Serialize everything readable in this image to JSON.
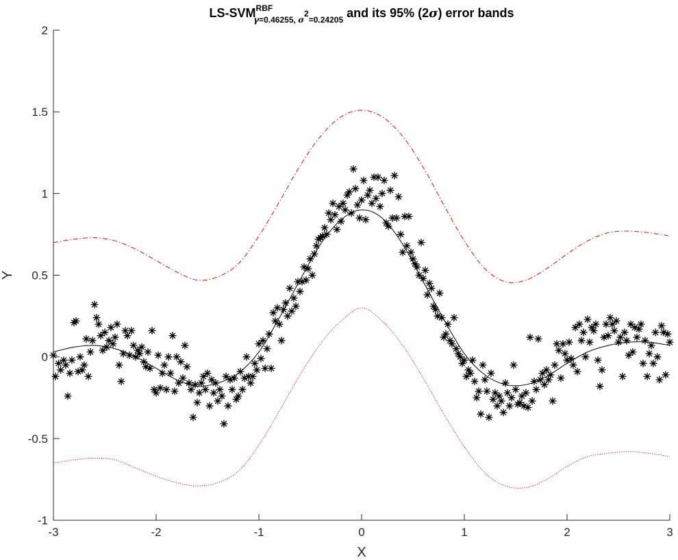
{
  "title": {
    "base": "LS-SVM",
    "superscript": "RBF",
    "sub_gamma_symbol": "γ",
    "sub_gamma_value": "=0.46255, ",
    "sub_sigma_symbol": "σ",
    "sub_sigma_exp": "2",
    "sub_sigma_value": "=0.24205",
    "rest_before": " and its 95% (2",
    "rest_sigma": "σ",
    "rest_after": ") error bands"
  },
  "chart_data": {
    "type": "scatter",
    "xlabel": "X",
    "ylabel": "Y",
    "xlim": [
      -3,
      3
    ],
    "ylim": [
      -1,
      2
    ],
    "xticks": [
      -3,
      -2,
      -1,
      0,
      1,
      2,
      3
    ],
    "yticks": [
      -1,
      -0.5,
      0,
      0.5,
      1,
      1.5,
      2
    ],
    "xtick_labels": [
      "-3",
      "-2",
      "-1",
      "0",
      "1",
      "2",
      "3"
    ],
    "ytick_labels": [
      "-1",
      "-0.5",
      "0",
      "0.5",
      "1",
      "1.5",
      "2"
    ],
    "grid": false,
    "curves": {
      "x": [
        -3.0,
        -2.8,
        -2.6,
        -2.4,
        -2.2,
        -2.0,
        -1.8,
        -1.6,
        -1.4,
        -1.2,
        -1.0,
        -0.8,
        -0.6,
        -0.4,
        -0.2,
        0.0,
        0.2,
        0.4,
        0.6,
        0.8,
        1.0,
        1.2,
        1.4,
        1.6,
        1.8,
        2.0,
        2.2,
        2.4,
        2.6,
        2.8,
        3.0
      ],
      "fit": [
        0.03,
        0.06,
        0.07,
        0.05,
        0.0,
        -0.07,
        -0.14,
        -0.18,
        -0.16,
        -0.1,
        0.03,
        0.24,
        0.47,
        0.69,
        0.84,
        0.9,
        0.85,
        0.69,
        0.46,
        0.23,
        0.02,
        -0.11,
        -0.17,
        -0.17,
        -0.12,
        -0.04,
        0.03,
        0.07,
        0.09,
        0.09,
        0.07
      ],
      "upper_band": [
        0.7,
        0.72,
        0.73,
        0.71,
        0.66,
        0.59,
        0.52,
        0.47,
        0.49,
        0.57,
        0.74,
        0.95,
        1.17,
        1.35,
        1.47,
        1.51,
        1.47,
        1.35,
        1.16,
        0.93,
        0.71,
        0.54,
        0.46,
        0.47,
        0.54,
        0.63,
        0.71,
        0.76,
        0.77,
        0.76,
        0.74
      ],
      "lower_band": [
        -0.65,
        -0.63,
        -0.62,
        -0.63,
        -0.68,
        -0.73,
        -0.77,
        -0.79,
        -0.77,
        -0.7,
        -0.54,
        -0.33,
        -0.11,
        0.08,
        0.22,
        0.3,
        0.22,
        0.07,
        -0.13,
        -0.35,
        -0.55,
        -0.71,
        -0.79,
        -0.8,
        -0.75,
        -0.67,
        -0.61,
        -0.59,
        -0.58,
        -0.59,
        -0.61
      ]
    },
    "points": [
      {
        "x": -3.0,
        "y": 0.01
      },
      {
        "x": -2.98,
        "y": -0.12
      },
      {
        "x": -2.95,
        "y": -0.04
      },
      {
        "x": -2.93,
        "y": -0.08
      },
      {
        "x": -2.9,
        "y": -0.02
      },
      {
        "x": -2.88,
        "y": -0.05
      },
      {
        "x": -2.86,
        "y": -0.24
      },
      {
        "x": -2.84,
        "y": -0.1
      },
      {
        "x": -2.82,
        "y": -0.02
      },
      {
        "x": -2.8,
        "y": 0.21
      },
      {
        "x": -2.78,
        "y": 0.22
      },
      {
        "x": -2.76,
        "y": -0.09
      },
      {
        "x": -2.74,
        "y": 0.0
      },
      {
        "x": -2.72,
        "y": -0.08
      },
      {
        "x": -2.7,
        "y": -0.05
      },
      {
        "x": -2.68,
        "y": 0.11
      },
      {
        "x": -2.66,
        "y": -0.12
      },
      {
        "x": -2.64,
        "y": 0.03
      },
      {
        "x": -2.62,
        "y": 0.1
      },
      {
        "x": -2.6,
        "y": 0.32
      },
      {
        "x": -2.58,
        "y": 0.24
      },
      {
        "x": -2.56,
        "y": 0.2
      },
      {
        "x": -2.54,
        "y": 0.13
      },
      {
        "x": -2.52,
        "y": 0.04
      },
      {
        "x": -2.5,
        "y": 0.15
      },
      {
        "x": -2.48,
        "y": 0.06
      },
      {
        "x": -2.46,
        "y": 0.1
      },
      {
        "x": -2.44,
        "y": 0.18
      },
      {
        "x": -2.42,
        "y": 0.08
      },
      {
        "x": -2.4,
        "y": 0.12
      },
      {
        "x": -2.38,
        "y": 0.2
      },
      {
        "x": -2.36,
        "y": -0.05
      },
      {
        "x": -2.34,
        "y": -0.15
      },
      {
        "x": -2.32,
        "y": 0.02
      },
      {
        "x": -2.3,
        "y": 0.16
      },
      {
        "x": -2.28,
        "y": 0.13
      },
      {
        "x": -2.26,
        "y": 0.01
      },
      {
        "x": -2.24,
        "y": 0.16
      },
      {
        "x": -2.22,
        "y": 0.07
      },
      {
        "x": -2.2,
        "y": 0.0
      },
      {
        "x": -2.18,
        "y": 0.04
      },
      {
        "x": -2.16,
        "y": 0.02
      },
      {
        "x": -2.14,
        "y": 0.06
      },
      {
        "x": -2.12,
        "y": -0.03
      },
      {
        "x": -2.1,
        "y": -0.06
      },
      {
        "x": -2.08,
        "y": 0.03
      },
      {
        "x": -2.06,
        "y": -0.07
      },
      {
        "x": -2.04,
        "y": 0.16
      },
      {
        "x": -2.02,
        "y": -0.2
      },
      {
        "x": -2.0,
        "y": -0.22
      },
      {
        "x": -1.98,
        "y": 0.01
      },
      {
        "x": -1.96,
        "y": -0.19
      },
      {
        "x": -1.94,
        "y": -0.1
      },
      {
        "x": -1.92,
        "y": -0.05
      },
      {
        "x": -1.9,
        "y": -0.2
      },
      {
        "x": -1.88,
        "y": 0.0
      },
      {
        "x": -1.86,
        "y": -0.1
      },
      {
        "x": -1.84,
        "y": 0.13
      },
      {
        "x": -1.82,
        "y": -0.21
      },
      {
        "x": -1.8,
        "y": 0.0
      },
      {
        "x": -1.78,
        "y": -0.16
      },
      {
        "x": -1.76,
        "y": -0.03
      },
      {
        "x": -1.74,
        "y": -0.13
      },
      {
        "x": -1.72,
        "y": 0.07
      },
      {
        "x": -1.7,
        "y": -0.06
      },
      {
        "x": -1.68,
        "y": -0.16
      },
      {
        "x": -1.66,
        "y": -0.2
      },
      {
        "x": -1.64,
        "y": -0.37
      },
      {
        "x": -1.62,
        "y": -0.17
      },
      {
        "x": -1.6,
        "y": -0.28
      },
      {
        "x": -1.58,
        "y": -0.22
      },
      {
        "x": -1.56,
        "y": -0.16
      },
      {
        "x": -1.54,
        "y": -0.12
      },
      {
        "x": -1.52,
        "y": -0.2
      },
      {
        "x": -1.5,
        "y": -0.1
      },
      {
        "x": -1.48,
        "y": -0.3
      },
      {
        "x": -1.46,
        "y": -0.14
      },
      {
        "x": -1.44,
        "y": -0.22
      },
      {
        "x": -1.42,
        "y": -0.16
      },
      {
        "x": -1.4,
        "y": -0.27
      },
      {
        "x": -1.38,
        "y": -0.2
      },
      {
        "x": -1.36,
        "y": -0.24
      },
      {
        "x": -1.34,
        "y": -0.41
      },
      {
        "x": -1.32,
        "y": -0.12
      },
      {
        "x": -1.3,
        "y": -0.3
      },
      {
        "x": -1.28,
        "y": -0.14
      },
      {
        "x": -1.26,
        "y": -0.2
      },
      {
        "x": -1.24,
        "y": -0.13
      },
      {
        "x": -1.22,
        "y": -0.26
      },
      {
        "x": -1.2,
        "y": -0.24
      },
      {
        "x": -1.18,
        "y": -0.09
      },
      {
        "x": -1.16,
        "y": -0.2
      },
      {
        "x": -1.14,
        "y": -0.13
      },
      {
        "x": -1.12,
        "y": 0.0
      },
      {
        "x": -1.1,
        "y": -0.12
      },
      {
        "x": -1.08,
        "y": -0.16
      },
      {
        "x": -1.06,
        "y": -0.12
      },
      {
        "x": -1.04,
        "y": -0.04
      },
      {
        "x": -1.02,
        "y": -0.08
      },
      {
        "x": -1.0,
        "y": 0.08
      },
      {
        "x": -0.98,
        "y": -0.01
      },
      {
        "x": -0.96,
        "y": 0.1
      },
      {
        "x": -0.94,
        "y": -0.07
      },
      {
        "x": -0.92,
        "y": 0.05
      },
      {
        "x": -0.9,
        "y": 0.14
      },
      {
        "x": -0.88,
        "y": -0.07
      },
      {
        "x": -0.86,
        "y": 0.27
      },
      {
        "x": -0.84,
        "y": 0.22
      },
      {
        "x": -0.82,
        "y": 0.3
      },
      {
        "x": -0.8,
        "y": 0.2
      },
      {
        "x": -0.78,
        "y": 0.1
      },
      {
        "x": -0.76,
        "y": 0.29
      },
      {
        "x": -0.74,
        "y": 0.33
      },
      {
        "x": -0.72,
        "y": 0.25
      },
      {
        "x": -0.7,
        "y": 0.42
      },
      {
        "x": -0.68,
        "y": 0.28
      },
      {
        "x": -0.66,
        "y": 0.36
      },
      {
        "x": -0.64,
        "y": 0.31
      },
      {
        "x": -0.62,
        "y": 0.46
      },
      {
        "x": -0.6,
        "y": 0.4
      },
      {
        "x": -0.58,
        "y": 0.46
      },
      {
        "x": -0.56,
        "y": 0.55
      },
      {
        "x": -0.54,
        "y": 0.47
      },
      {
        "x": -0.52,
        "y": 0.54
      },
      {
        "x": -0.5,
        "y": 0.6
      },
      {
        "x": -0.48,
        "y": 0.5
      },
      {
        "x": -0.46,
        "y": 0.63
      },
      {
        "x": -0.44,
        "y": 0.68
      },
      {
        "x": -0.42,
        "y": 0.72
      },
      {
        "x": -0.4,
        "y": 0.73
      },
      {
        "x": -0.38,
        "y": 0.74
      },
      {
        "x": -0.36,
        "y": 0.79
      },
      {
        "x": -0.34,
        "y": 0.75
      },
      {
        "x": -0.32,
        "y": 0.88
      },
      {
        "x": -0.3,
        "y": 0.84
      },
      {
        "x": -0.28,
        "y": 0.94
      },
      {
        "x": -0.26,
        "y": 0.87
      },
      {
        "x": -0.24,
        "y": 0.78
      },
      {
        "x": -0.22,
        "y": 0.92
      },
      {
        "x": -0.2,
        "y": 0.83
      },
      {
        "x": -0.18,
        "y": 0.94
      },
      {
        "x": -0.16,
        "y": 0.9
      },
      {
        "x": -0.14,
        "y": 0.99
      },
      {
        "x": -0.12,
        "y": 1.01
      },
      {
        "x": -0.1,
        "y": 0.88
      },
      {
        "x": -0.08,
        "y": 1.15
      },
      {
        "x": -0.06,
        "y": 1.03
      },
      {
        "x": -0.04,
        "y": 0.93
      },
      {
        "x": -0.02,
        "y": 0.85
      },
      {
        "x": 0.0,
        "y": 0.96
      },
      {
        "x": 0.02,
        "y": 1.08
      },
      {
        "x": 0.04,
        "y": 0.84
      },
      {
        "x": 0.06,
        "y": 0.99
      },
      {
        "x": 0.08,
        "y": 1.02
      },
      {
        "x": 0.1,
        "y": 0.94
      },
      {
        "x": 0.12,
        "y": 1.1
      },
      {
        "x": 0.14,
        "y": 0.97
      },
      {
        "x": 0.16,
        "y": 1.1
      },
      {
        "x": 0.18,
        "y": 0.92
      },
      {
        "x": 0.2,
        "y": 1.0
      },
      {
        "x": 0.22,
        "y": 1.08
      },
      {
        "x": 0.24,
        "y": 0.82
      },
      {
        "x": 0.26,
        "y": 0.8
      },
      {
        "x": 0.28,
        "y": 1.02
      },
      {
        "x": 0.3,
        "y": 0.85
      },
      {
        "x": 0.32,
        "y": 1.11
      },
      {
        "x": 0.34,
        "y": 0.85
      },
      {
        "x": 0.36,
        "y": 0.98
      },
      {
        "x": 0.38,
        "y": 0.75
      },
      {
        "x": 0.4,
        "y": 0.64
      },
      {
        "x": 0.42,
        "y": 0.86
      },
      {
        "x": 0.44,
        "y": 0.68
      },
      {
        "x": 0.46,
        "y": 0.86
      },
      {
        "x": 0.48,
        "y": 0.64
      },
      {
        "x": 0.5,
        "y": 0.6
      },
      {
        "x": 0.52,
        "y": 0.57
      },
      {
        "x": 0.54,
        "y": 0.55
      },
      {
        "x": 0.56,
        "y": 0.5
      },
      {
        "x": 0.58,
        "y": 0.7
      },
      {
        "x": 0.6,
        "y": 0.48
      },
      {
        "x": 0.62,
        "y": 0.53
      },
      {
        "x": 0.64,
        "y": 0.38
      },
      {
        "x": 0.66,
        "y": 0.45
      },
      {
        "x": 0.68,
        "y": 0.42
      },
      {
        "x": 0.7,
        "y": 0.31
      },
      {
        "x": 0.72,
        "y": 0.29
      },
      {
        "x": 0.74,
        "y": 0.25
      },
      {
        "x": 0.76,
        "y": 0.39
      },
      {
        "x": 0.78,
        "y": 0.24
      },
      {
        "x": 0.8,
        "y": 0.12
      },
      {
        "x": 0.82,
        "y": 0.14
      },
      {
        "x": 0.84,
        "y": 0.2
      },
      {
        "x": 0.86,
        "y": 0.1
      },
      {
        "x": 0.88,
        "y": 0.08
      },
      {
        "x": 0.9,
        "y": 0.24
      },
      {
        "x": 0.92,
        "y": 0.05
      },
      {
        "x": 0.94,
        "y": 0.02
      },
      {
        "x": 0.96,
        "y": 0.0
      },
      {
        "x": 0.98,
        "y": -0.04
      },
      {
        "x": 1.0,
        "y": -0.02
      },
      {
        "x": 1.02,
        "y": -0.12
      },
      {
        "x": 1.04,
        "y": -0.08
      },
      {
        "x": 1.06,
        "y": -0.1
      },
      {
        "x": 1.08,
        "y": -0.02
      },
      {
        "x": 1.1,
        "y": -0.15
      },
      {
        "x": 1.12,
        "y": -0.25
      },
      {
        "x": 1.14,
        "y": -0.21
      },
      {
        "x": 1.16,
        "y": -0.35
      },
      {
        "x": 1.18,
        "y": -0.05
      },
      {
        "x": 1.2,
        "y": -0.14
      },
      {
        "x": 1.22,
        "y": -0.21
      },
      {
        "x": 1.24,
        "y": -0.37
      },
      {
        "x": 1.26,
        "y": -0.1
      },
      {
        "x": 1.28,
        "y": -0.26
      },
      {
        "x": 1.3,
        "y": -0.22
      },
      {
        "x": 1.32,
        "y": -0.3
      },
      {
        "x": 1.34,
        "y": -0.24
      },
      {
        "x": 1.36,
        "y": -0.27
      },
      {
        "x": 1.38,
        "y": -0.34
      },
      {
        "x": 1.4,
        "y": -0.16
      },
      {
        "x": 1.42,
        "y": -0.22
      },
      {
        "x": 1.44,
        "y": -0.3
      },
      {
        "x": 1.46,
        "y": -0.25
      },
      {
        "x": 1.48,
        "y": -0.05
      },
      {
        "x": 1.5,
        "y": -0.2
      },
      {
        "x": 1.52,
        "y": -0.29
      },
      {
        "x": 1.54,
        "y": -0.28
      },
      {
        "x": 1.56,
        "y": -0.24
      },
      {
        "x": 1.58,
        "y": -0.3
      },
      {
        "x": 1.6,
        "y": -0.22
      },
      {
        "x": 1.62,
        "y": -0.31
      },
      {
        "x": 1.64,
        "y": 0.12
      },
      {
        "x": 1.66,
        "y": -0.27
      },
      {
        "x": 1.68,
        "y": -0.15
      },
      {
        "x": 1.7,
        "y": -0.2
      },
      {
        "x": 1.72,
        "y": 0.11
      },
      {
        "x": 1.74,
        "y": -0.14
      },
      {
        "x": 1.76,
        "y": -0.1
      },
      {
        "x": 1.78,
        "y": -0.17
      },
      {
        "x": 1.8,
        "y": -0.08
      },
      {
        "x": 1.82,
        "y": -0.14
      },
      {
        "x": 1.84,
        "y": -0.11
      },
      {
        "x": 1.86,
        "y": -0.27
      },
      {
        "x": 1.88,
        "y": -0.05
      },
      {
        "x": 1.9,
        "y": 0.08
      },
      {
        "x": 1.92,
        "y": 0.04
      },
      {
        "x": 1.94,
        "y": -0.13
      },
      {
        "x": 1.96,
        "y": 0.08
      },
      {
        "x": 1.98,
        "y": 0.02
      },
      {
        "x": 2.0,
        "y": -0.02
      },
      {
        "x": 2.02,
        "y": 0.09
      },
      {
        "x": 2.04,
        "y": -0.01
      },
      {
        "x": 2.06,
        "y": -0.05
      },
      {
        "x": 2.08,
        "y": 0.18
      },
      {
        "x": 2.1,
        "y": -0.09
      },
      {
        "x": 2.12,
        "y": 0.2
      },
      {
        "x": 2.14,
        "y": 0.1
      },
      {
        "x": 2.16,
        "y": 0.15
      },
      {
        "x": 2.18,
        "y": 0.0
      },
      {
        "x": 2.2,
        "y": 0.23
      },
      {
        "x": 2.22,
        "y": 0.09
      },
      {
        "x": 2.24,
        "y": 0.18
      },
      {
        "x": 2.26,
        "y": 0.16
      },
      {
        "x": 2.28,
        "y": 0.2
      },
      {
        "x": 2.3,
        "y": -0.02
      },
      {
        "x": 2.32,
        "y": -0.18
      },
      {
        "x": 2.34,
        "y": -0.08
      },
      {
        "x": 2.36,
        "y": 0.12
      },
      {
        "x": 2.38,
        "y": 0.2
      },
      {
        "x": 2.4,
        "y": 0.13
      },
      {
        "x": 2.42,
        "y": 0.24
      },
      {
        "x": 2.44,
        "y": 0.2
      },
      {
        "x": 2.46,
        "y": 0.16
      },
      {
        "x": 2.48,
        "y": 0.22
      },
      {
        "x": 2.5,
        "y": 0.09
      },
      {
        "x": 2.52,
        "y": 0.12
      },
      {
        "x": 2.54,
        "y": -0.12
      },
      {
        "x": 2.56,
        "y": 0.15
      },
      {
        "x": 2.58,
        "y": 0.1
      },
      {
        "x": 2.6,
        "y": 0.01
      },
      {
        "x": 2.62,
        "y": 0.2
      },
      {
        "x": 2.64,
        "y": 0.03
      },
      {
        "x": 2.66,
        "y": 0.18
      },
      {
        "x": 2.68,
        "y": 0.12
      },
      {
        "x": 2.7,
        "y": 0.17
      },
      {
        "x": 2.72,
        "y": 0.2
      },
      {
        "x": 2.74,
        "y": -0.04
      },
      {
        "x": 2.76,
        "y": 0.1
      },
      {
        "x": 2.78,
        "y": -0.12
      },
      {
        "x": 2.8,
        "y": 0.02
      },
      {
        "x": 2.82,
        "y": 0.07
      },
      {
        "x": 2.84,
        "y": -0.04
      },
      {
        "x": 2.86,
        "y": 0.15
      },
      {
        "x": 2.88,
        "y": 0.0
      },
      {
        "x": 2.9,
        "y": -0.14
      },
      {
        "x": 2.92,
        "y": 0.19
      },
      {
        "x": 2.94,
        "y": 0.15
      },
      {
        "x": 2.96,
        "y": -0.11
      },
      {
        "x": 2.98,
        "y": 0.14
      },
      {
        "x": 3.0,
        "y": 0.09
      }
    ],
    "colors": {
      "points": "#000000",
      "fit": "#000000",
      "upper_band": "#ff0000",
      "lower_band": "#ff0000",
      "axes": "#262626"
    }
  }
}
